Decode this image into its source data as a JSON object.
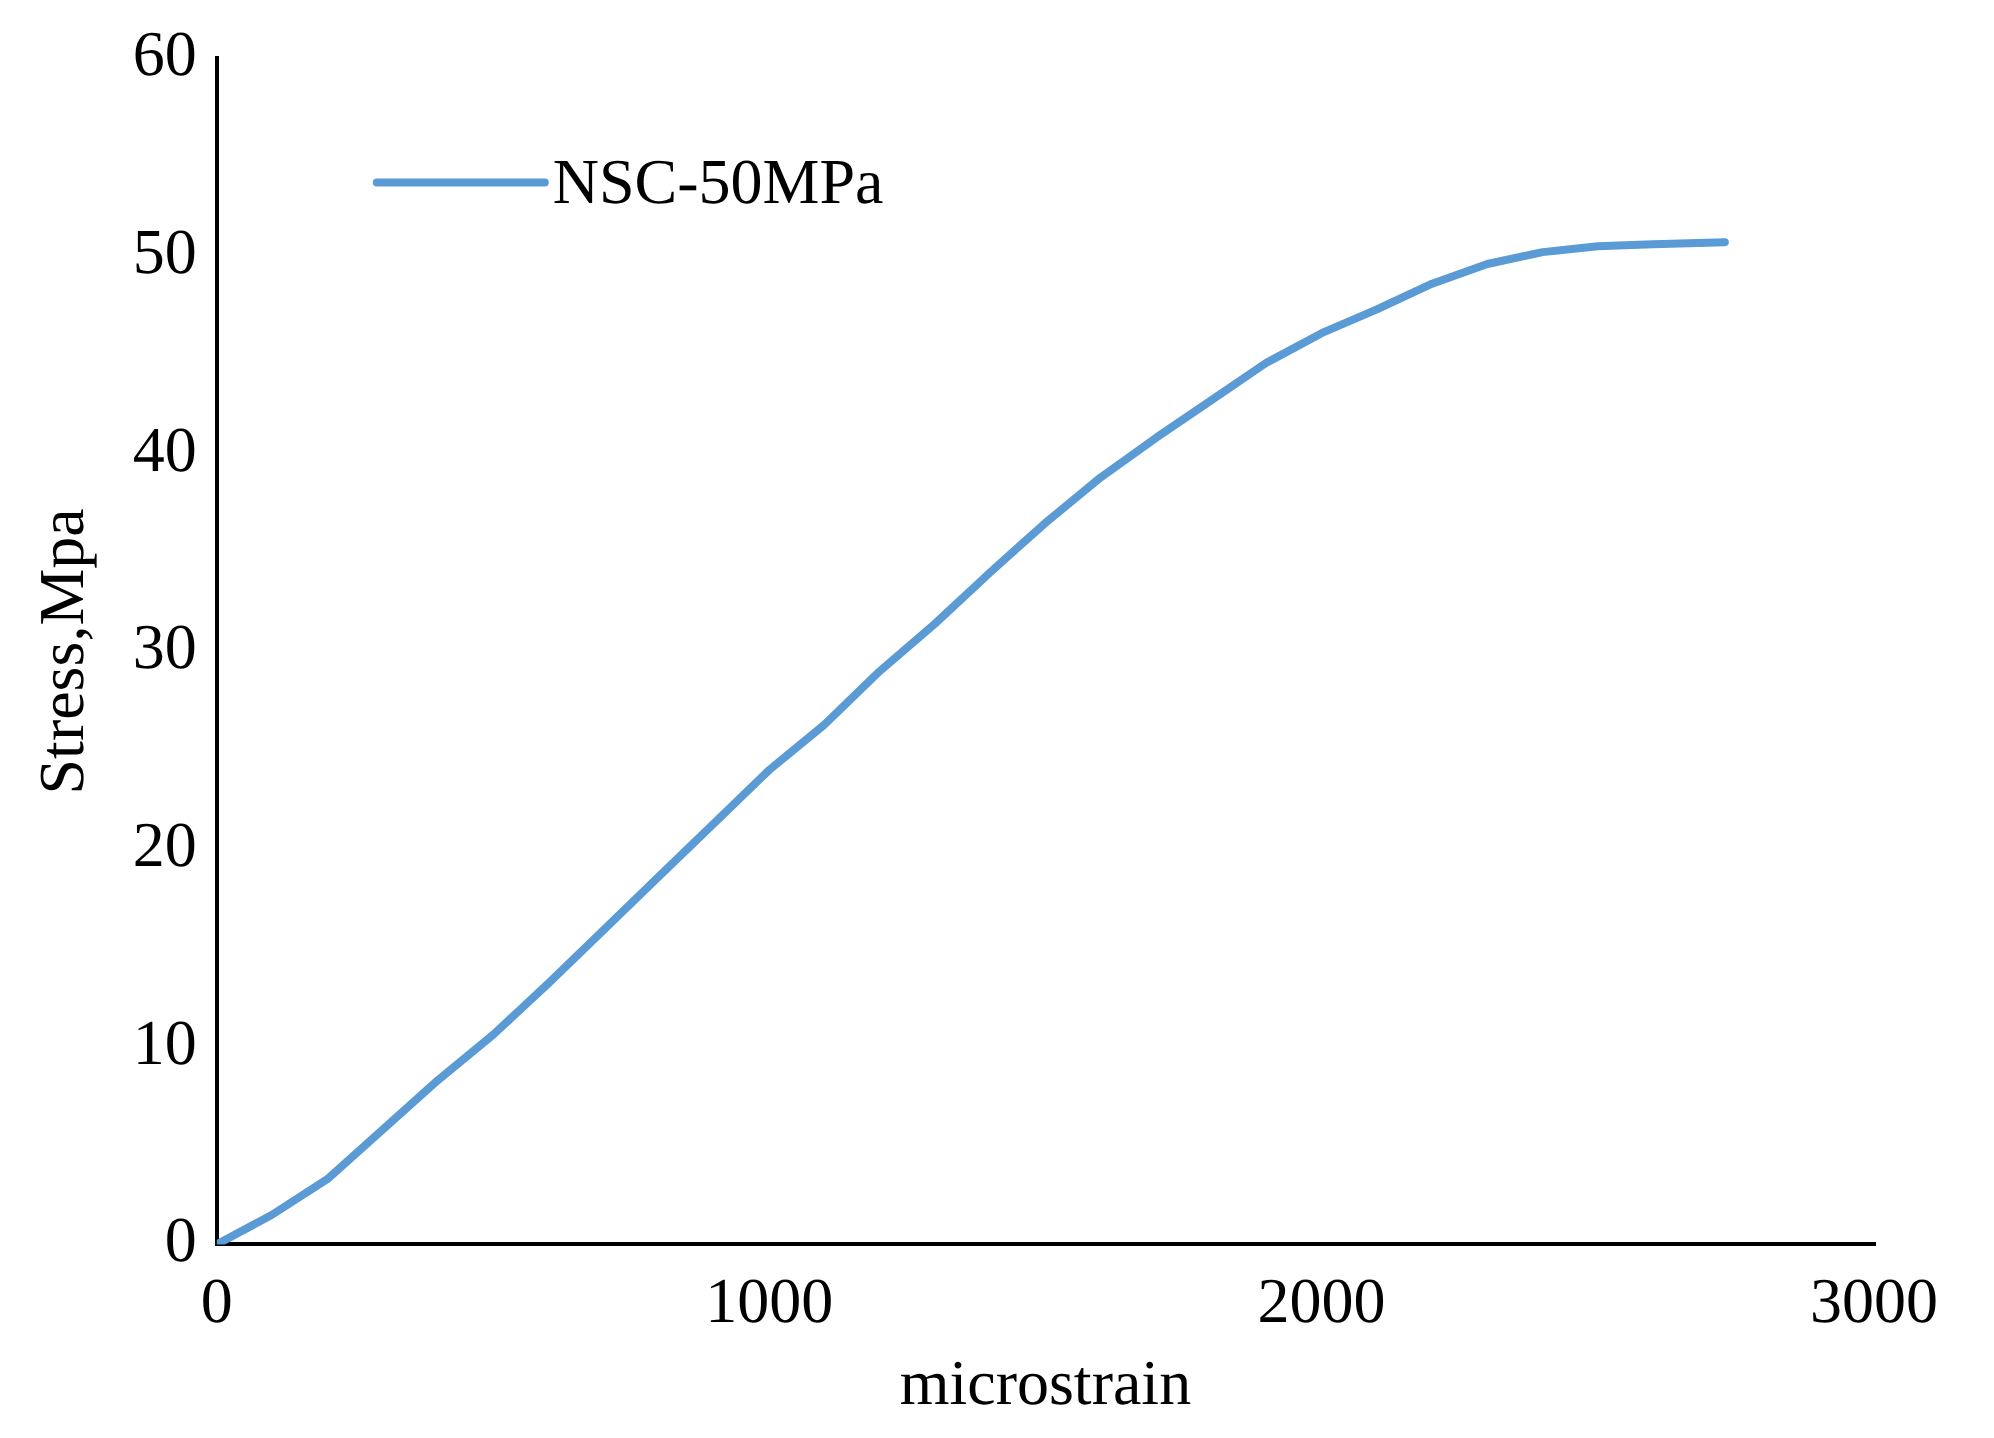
{
  "chart_data": {
    "type": "line",
    "xlabel": "microstrain",
    "ylabel": "Stress,Mpa",
    "x": [
      0,
      100,
      200,
      300,
      400,
      500,
      600,
      700,
      800,
      900,
      1000,
      1100,
      1200,
      1300,
      1400,
      1500,
      1600,
      1700,
      1800,
      1900,
      2000,
      2100,
      2200,
      2300,
      2400,
      2500,
      2600,
      2730
    ],
    "series": [
      {
        "name": "NSC-50MPa",
        "color": "#5b9bd5",
        "values": [
          0,
          1.5,
          3.3,
          5.8,
          8.3,
          10.6,
          13.2,
          15.9,
          18.6,
          21.3,
          24,
          26.3,
          29,
          31.4,
          34,
          36.5,
          38.8,
          40.8,
          42.7,
          44.6,
          46.1,
          47.3,
          48.6,
          49.6,
          50.2,
          50.5,
          50.6,
          50.7
        ]
      }
    ],
    "xlim": [
      0,
      3000
    ],
    "xticks": [
      0,
      1000,
      2000,
      3000
    ],
    "ylim": [
      0,
      60
    ],
    "yticks": [
      0,
      10,
      20,
      30,
      40,
      50,
      60
    ],
    "grid": false,
    "legend": "top left",
    "marker": "none",
    "line_style": "solid"
  }
}
